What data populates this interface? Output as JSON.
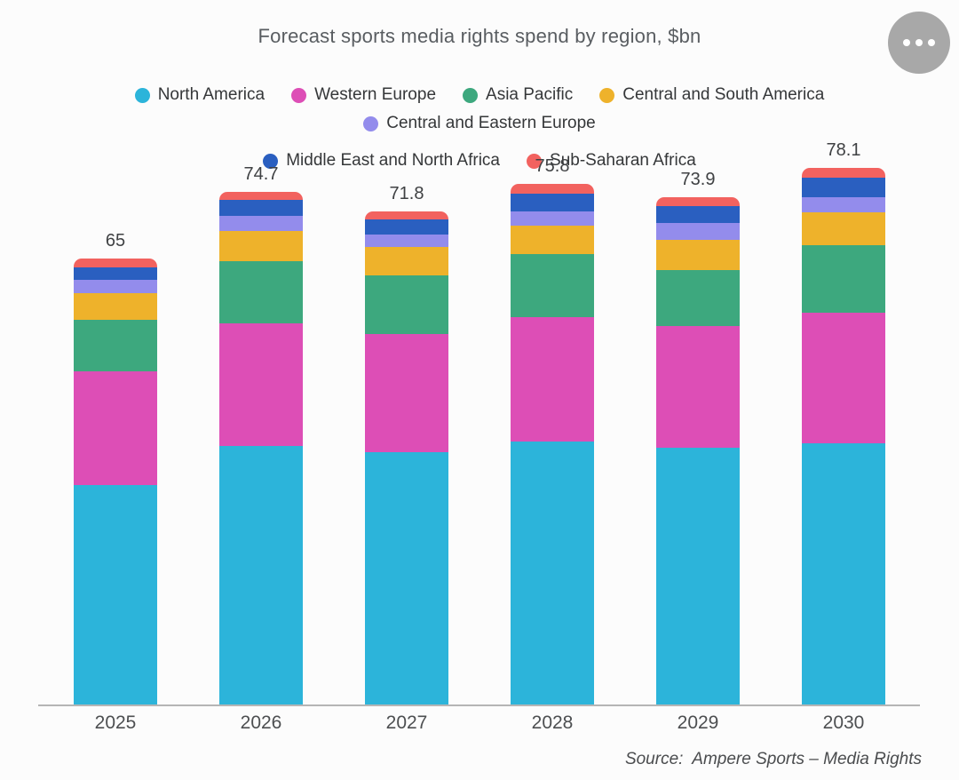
{
  "header": {
    "title": "Forecast sports media rights spend by region, $bn",
    "more_button_icon": "ellipsis-icon"
  },
  "footer": {
    "source": "Source:  Ampere Sports – Media Rights"
  },
  "chart_data": {
    "type": "bar",
    "stacked": true,
    "title": "Forecast sports media rights spend by region, $bn",
    "xlabel": "",
    "ylabel": "",
    "grid": false,
    "legend_position": "top",
    "ylim": [
      0,
      80
    ],
    "categories": [
      "2025",
      "2026",
      "2027",
      "2028",
      "2029",
      "2030"
    ],
    "totals": [
      65,
      74.7,
      71.8,
      75.8,
      73.9,
      78.1
    ],
    "total_labels": [
      "65",
      "74.7",
      "71.8",
      "75.8",
      "73.9",
      "78.1"
    ],
    "series": [
      {
        "name": "North America",
        "color": "#2cb4da",
        "values": [
          31.9,
          37.6,
          36.7,
          38.3,
          37.4,
          38.0
        ]
      },
      {
        "name": "Western Europe",
        "color": "#dd4eb6",
        "values": [
          16.6,
          17.9,
          17.3,
          18.1,
          17.7,
          19.1
        ]
      },
      {
        "name": "Asia Pacific",
        "color": "#3da87e",
        "values": [
          7.5,
          9.1,
          8.5,
          9.2,
          8.1,
          9.8
        ]
      },
      {
        "name": "Central and South America",
        "color": "#eeb22b",
        "values": [
          3.9,
          4.3,
          4.1,
          4.1,
          4.4,
          4.8
        ]
      },
      {
        "name": "Central and Eastern Europe",
        "color": "#938cec",
        "values": [
          1.9,
          2.3,
          1.9,
          2.1,
          2.5,
          2.2
        ]
      },
      {
        "name": "Middle East and North Africa",
        "color": "#2a5fc0",
        "values": [
          1.9,
          2.3,
          2.1,
          2.6,
          2.5,
          2.8
        ]
      },
      {
        "name": "Sub-Saharan Africa",
        "color": "#f2625f",
        "values": [
          1.3,
          1.2,
          1.2,
          1.4,
          1.3,
          1.4
        ]
      }
    ]
  }
}
